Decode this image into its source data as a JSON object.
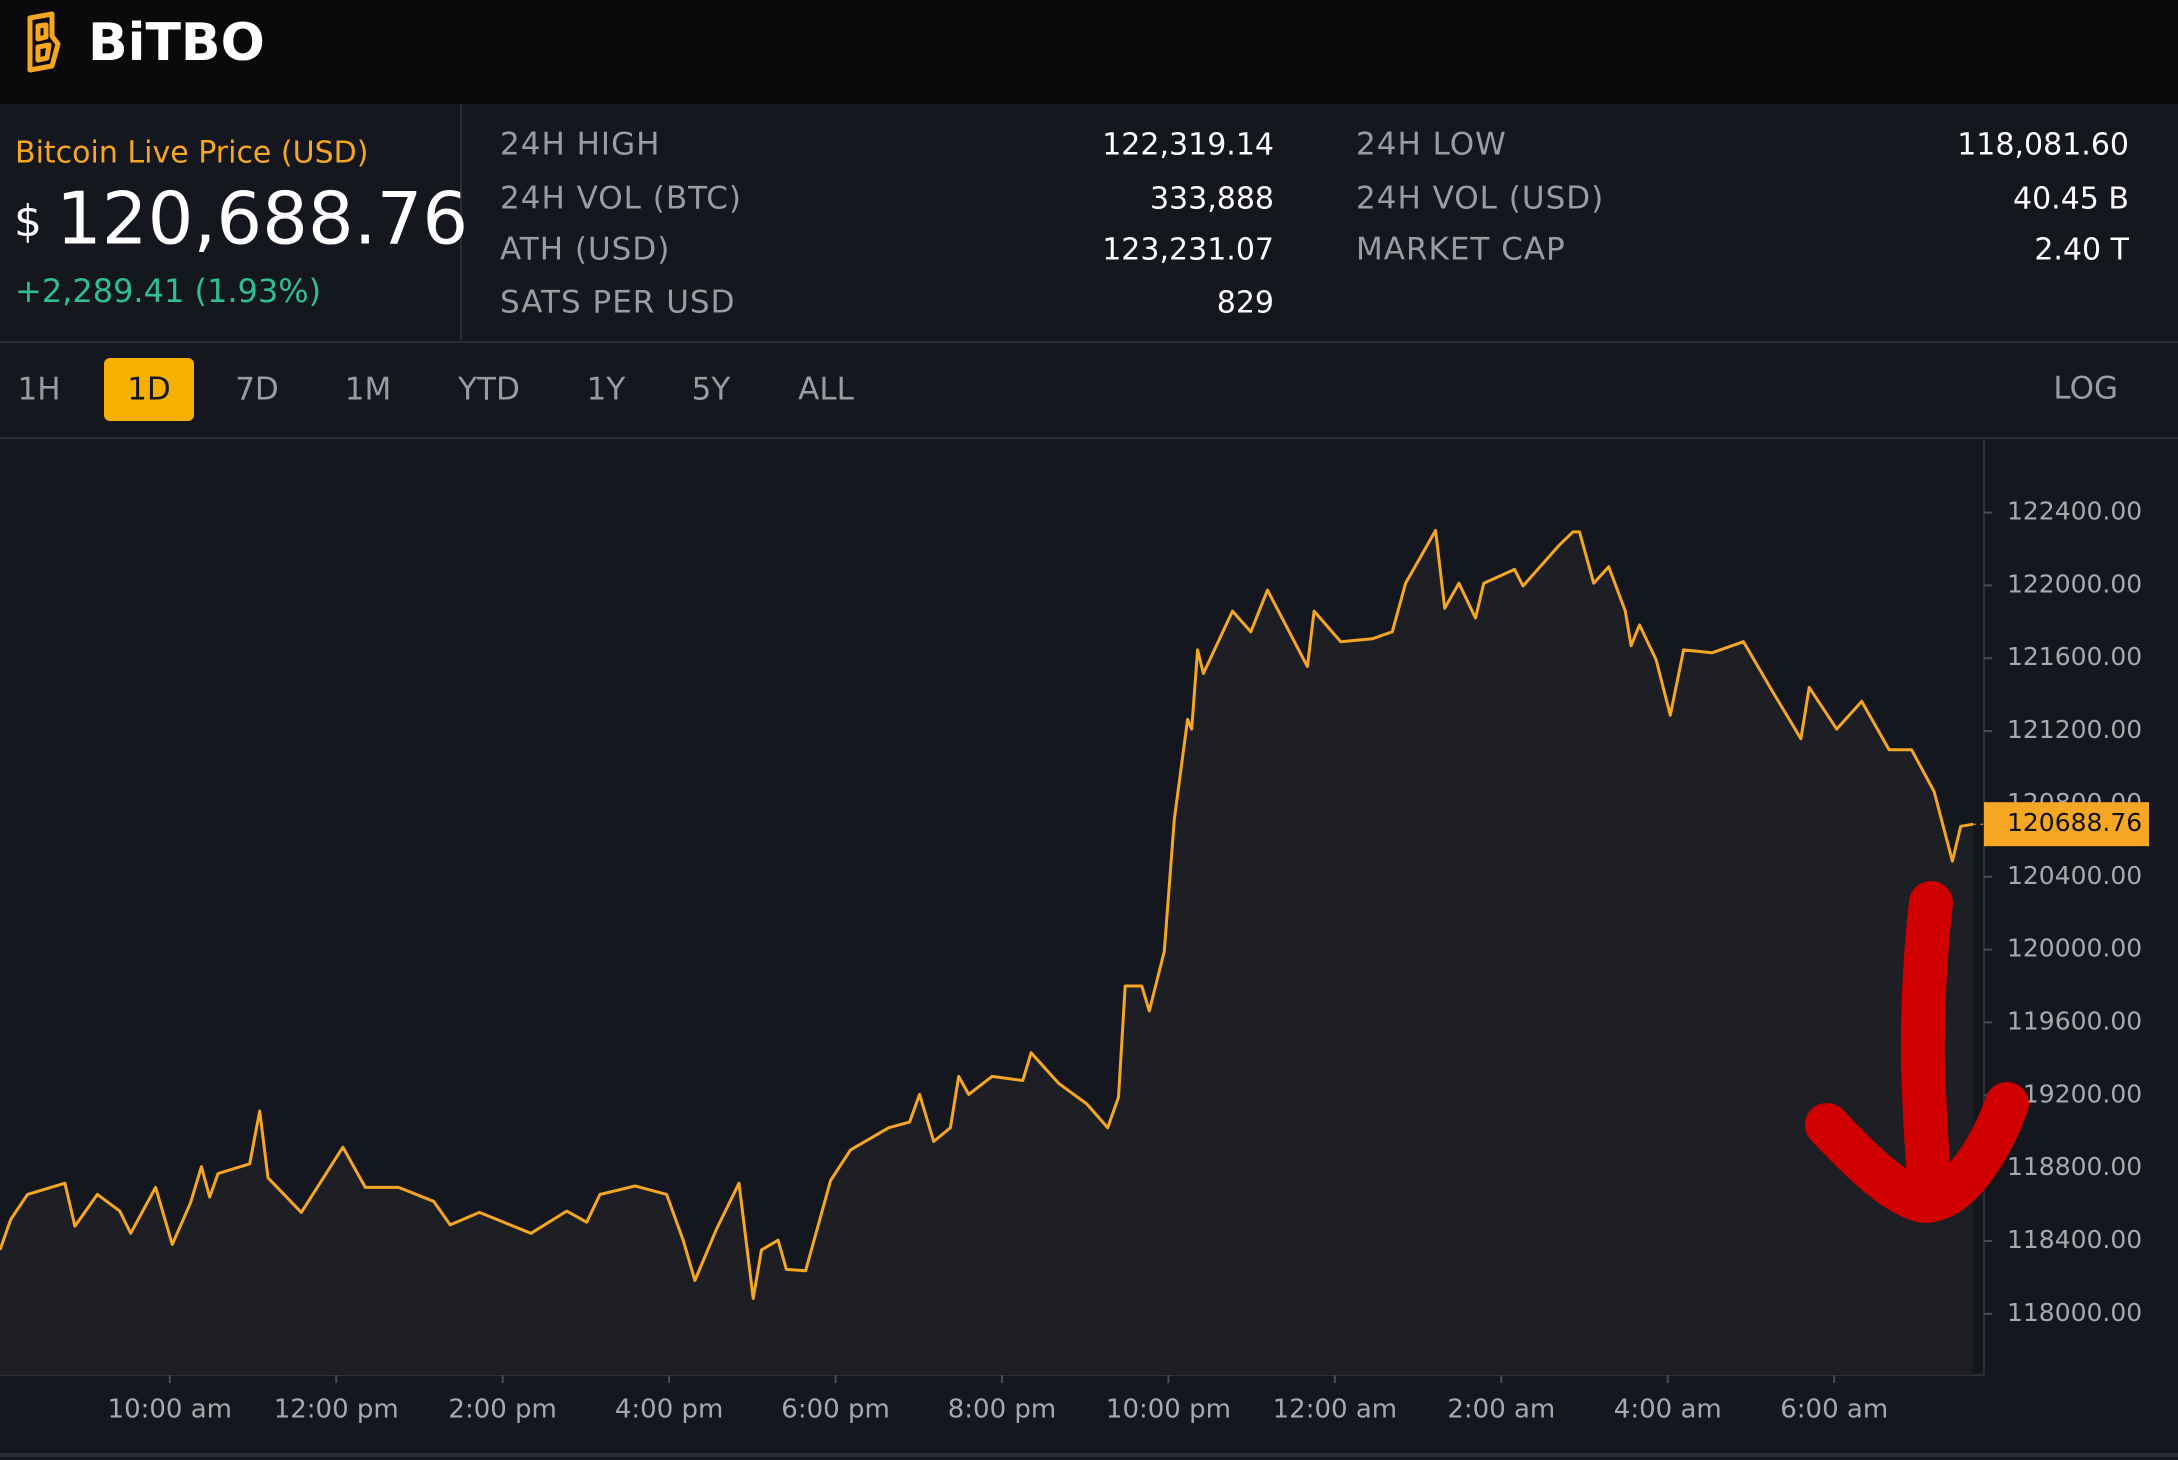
{
  "header": {
    "brand": "BiTBO"
  },
  "price": {
    "label": "Bitcoin Live Price (USD)",
    "currency": "$",
    "value": "120,688.76",
    "change": "+2,289.41 (1.93%)"
  },
  "stats": [
    {
      "label": "24H HIGH",
      "value": "122,319.14"
    },
    {
      "label": "24H VOL (BTC)",
      "value": "333,888"
    },
    {
      "label": "ATH (USD)",
      "value": "123,231.07"
    },
    {
      "label": "SATS PER USD",
      "value": "829"
    },
    {
      "label": "24H LOW",
      "value": "118,081.60"
    },
    {
      "label": "24H VOL (USD)",
      "value": "40.45 B"
    },
    {
      "label": "MARKET CAP",
      "value": "2.40 T"
    }
  ],
  "ranges": [
    "1H",
    "1D",
    "7D",
    "1M",
    "YTD",
    "1Y",
    "5Y",
    "ALL"
  ],
  "active_range": 1,
  "log_button": "LOG",
  "chart_data": {
    "type": "line",
    "x": [
      7.96,
      8.09,
      8.29,
      8.51,
      8.74,
      8.86,
      9.13,
      9.4,
      9.53,
      9.83,
      10.03,
      10.25,
      10.38,
      10.48,
      10.58,
      10.96,
      11.08,
      11.18,
      11.58,
      12.08,
      12.35,
      12.75,
      13.17,
      13.37,
      13.72,
      14.34,
      14.77,
      15.01,
      15.17,
      15.59,
      15.97,
      16.17,
      16.31,
      16.57,
      16.84,
      17.01,
      17.11,
      17.31,
      17.41,
      17.64,
      17.94,
      18.18,
      18.64,
      18.89,
      19.01,
      19.18,
      19.38,
      19.48,
      19.6,
      19.88,
      20.25,
      20.35,
      20.68,
      21.02,
      21.27,
      21.4,
      21.48,
      21.68,
      21.77,
      21.95,
      22.07,
      22.23,
      22.28,
      22.35,
      22.42,
      22.77,
      22.99,
      23.19,
      23.67,
      23.75,
      24.07,
      24.45,
      24.69,
      24.85,
      25.21,
      25.32,
      25.49,
      25.69,
      25.79,
      26.16,
      26.26,
      26.69,
      26.86,
      26.94,
      27.11,
      27.29,
      27.49,
      27.56,
      27.66,
      27.86,
      28.03,
      28.19,
      28.53,
      28.91,
      29.25,
      29.6,
      29.7,
      30.03,
      30.33,
      30.66,
      30.93,
      31.2,
      31.42,
      31.52,
      31.67
    ],
    "series": [
      {
        "color": "#f5a623",
        "values": [
          118351,
          118519,
          118656,
          118686,
          118717,
          118481,
          118656,
          118564,
          118442,
          118694,
          118381,
          118610,
          118808,
          118641,
          118770,
          118824,
          119114,
          118747,
          118557,
          118915,
          118694,
          118694,
          118618,
          118488,
          118557,
          118442,
          118564,
          118503,
          118656,
          118702,
          118656,
          118404,
          118183,
          118465,
          118717,
          118084,
          118351,
          118404,
          118244,
          118236,
          118732,
          118900,
          119022,
          119053,
          119205,
          118946,
          119022,
          119304,
          119205,
          119304,
          119281,
          119434,
          119266,
          119152,
          119022,
          119190,
          119800,
          119800,
          119663,
          119991,
          120715,
          121264,
          121211,
          121646,
          121516,
          121859,
          121745,
          121974,
          121554,
          121859,
          121691,
          121707,
          121745,
          122012,
          122302,
          121875,
          122012,
          121821,
          122012,
          122088,
          121997,
          122218,
          122294,
          122294,
          122012,
          122103,
          121859,
          121669,
          121783,
          121592,
          121287,
          121646,
          121630,
          121691,
          121424,
          121158,
          121440,
          121211,
          121363,
          121097,
          121097,
          120868,
          120486,
          120677,
          120688.76
        ]
      }
    ],
    "last_value_label": "120688.76",
    "xlim": [
      7.96,
      31.8
    ],
    "ylim": [
      117664,
      122804
    ],
    "xticks": [
      {
        "value": 10,
        "label": "10:00 am"
      },
      {
        "value": 12,
        "label": "12:00 pm"
      },
      {
        "value": 14,
        "label": "2:00 pm"
      },
      {
        "value": 16,
        "label": "4:00 pm"
      },
      {
        "value": 18,
        "label": "6:00 pm"
      },
      {
        "value": 20,
        "label": "8:00 pm"
      },
      {
        "value": 22,
        "label": "10:00 pm"
      },
      {
        "value": 24,
        "label": "12:00 am"
      },
      {
        "value": 26,
        "label": "2:00 am"
      },
      {
        "value": 28,
        "label": "4:00 am"
      },
      {
        "value": 30,
        "label": "6:00 am"
      }
    ],
    "yticks": [
      {
        "value": 118000,
        "label": "118000.00"
      },
      {
        "value": 118400,
        "label": "118400.00"
      },
      {
        "value": 118800,
        "label": "118800.00"
      },
      {
        "value": 119200,
        "label": "119200.00"
      },
      {
        "value": 119600,
        "label": "119600.00"
      },
      {
        "value": 120000,
        "label": "120000.00"
      },
      {
        "value": 120400,
        "label": "120400.00"
      },
      {
        "value": 120800,
        "label": "120800.00"
      },
      {
        "value": 121200,
        "label": "121200.00"
      },
      {
        "value": 121600,
        "label": "121600.00"
      },
      {
        "value": 122000,
        "label": "122000.00"
      },
      {
        "value": 122400,
        "label": "122400.00"
      }
    ]
  }
}
